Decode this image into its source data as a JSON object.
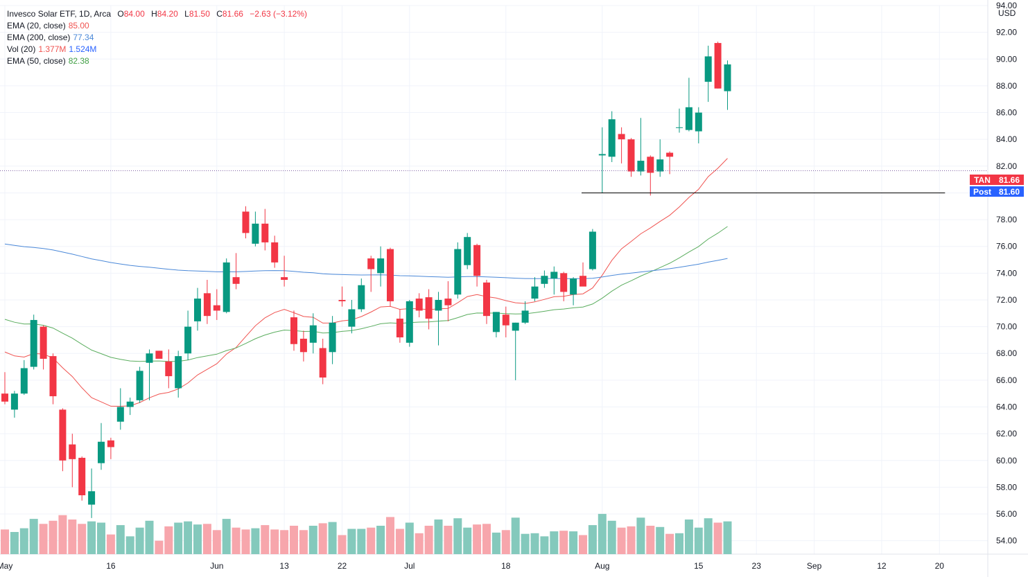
{
  "legend": {
    "title": "Invesco Solar ETF, 1D, Arca",
    "ohlc": {
      "o_label": "O",
      "o": "84.00",
      "h_label": "H",
      "h": "84.20",
      "l_label": "L",
      "l": "81.50",
      "c_label": "C",
      "c": "81.66",
      "chg": "−2.63 (−3.12%)"
    },
    "indicators": [
      {
        "label": "EMA (20, close)",
        "value": "85.00",
        "color": "#f05350"
      },
      {
        "label": "EMA (200, close)",
        "value": "77.34",
        "color": "#4a88d8"
      },
      {
        "label": "Vol (20)",
        "value": "1.377M",
        "value2": "1.524M",
        "color": "#f05350",
        "color2": "#2962ff"
      },
      {
        "label": "EMA (50, close)",
        "value": "82.38",
        "color": "#43a047"
      }
    ]
  },
  "axis": {
    "currency": "USD"
  },
  "price_tags": [
    {
      "label": "TAN",
      "value": "81.66",
      "color": "#f23645"
    },
    {
      "label": "Post",
      "value": "81.60",
      "color": "#2962ff"
    }
  ],
  "colors": {
    "up": "#089981",
    "down": "#f23645",
    "vol_up": "#84c9bc",
    "vol_down": "#f7a6ac",
    "ema20": "#f05350",
    "ema50": "#5aad5e",
    "ema200": "#4a88d8",
    "vol_ma": "#2962ff",
    "grid": "#f0f3fa",
    "support": "#000000"
  },
  "chart_data": {
    "type": "candlestick",
    "title": "Invesco Solar ETF, 1D, Arca",
    "ylim": [
      53,
      94
    ],
    "y_ticks": [
      54,
      56,
      58,
      60,
      62,
      64,
      66,
      68,
      70,
      72,
      74,
      76,
      78,
      80,
      82,
      84,
      86,
      88,
      90,
      92,
      94
    ],
    "x_tick_labels": [
      {
        "label": "May",
        "index": 0
      },
      {
        "label": "16",
        "index": 11
      },
      {
        "label": "Jun",
        "index": 22
      },
      {
        "label": "13",
        "index": 29
      },
      {
        "label": "22",
        "index": 35
      },
      {
        "label": "Jul",
        "index": 42
      },
      {
        "label": "18",
        "index": 52
      },
      {
        "label": "Aug",
        "index": 62
      },
      {
        "label": "15",
        "index": 72
      },
      {
        "label": "23",
        "index": 78
      },
      {
        "label": "Sep",
        "index": 84
      },
      {
        "label": "12",
        "index": 91
      },
      {
        "label": "20",
        "index": 97
      }
    ],
    "support_line": {
      "value": 80.0,
      "from_index": 60,
      "to_index": 97
    },
    "last_price_line": 81.66,
    "candles": [
      {
        "o": 65.0,
        "h": 66.6,
        "l": 64.2,
        "c": 64.4
      },
      {
        "o": 63.8,
        "h": 65.2,
        "l": 63.2,
        "c": 65.0
      },
      {
        "o": 65.0,
        "h": 67.5,
        "l": 64.9,
        "c": 66.9
      },
      {
        "o": 67.0,
        "h": 70.9,
        "l": 66.8,
        "c": 70.5
      },
      {
        "o": 70.0,
        "h": 70.1,
        "l": 66.8,
        "c": 67.6
      },
      {
        "o": 67.8,
        "h": 68.0,
        "l": 64.2,
        "c": 64.8
      },
      {
        "o": 63.8,
        "h": 63.9,
        "l": 59.2,
        "c": 60.0
      },
      {
        "o": 61.2,
        "h": 62.0,
        "l": 58.0,
        "c": 60.1
      },
      {
        "o": 60.2,
        "h": 60.3,
        "l": 57.0,
        "c": 57.4
      },
      {
        "o": 56.7,
        "h": 59.4,
        "l": 55.7,
        "c": 57.7
      },
      {
        "o": 59.8,
        "h": 62.8,
        "l": 59.3,
        "c": 61.4
      },
      {
        "o": 61.5,
        "h": 61.7,
        "l": 60.1,
        "c": 61.0
      },
      {
        "o": 62.9,
        "h": 65.4,
        "l": 62.3,
        "c": 64.0
      },
      {
        "o": 64.0,
        "h": 64.7,
        "l": 63.4,
        "c": 64.4
      },
      {
        "o": 64.5,
        "h": 67.0,
        "l": 64.3,
        "c": 66.7
      },
      {
        "o": 67.3,
        "h": 68.3,
        "l": 64.5,
        "c": 68.0
      },
      {
        "o": 68.2,
        "h": 68.2,
        "l": 67.7,
        "c": 67.6
      },
      {
        "o": 67.4,
        "h": 68.3,
        "l": 65.4,
        "c": 66.3
      },
      {
        "o": 65.4,
        "h": 68.2,
        "l": 64.7,
        "c": 67.8
      },
      {
        "o": 68.0,
        "h": 71.2,
        "l": 67.5,
        "c": 70.0
      },
      {
        "o": 70.4,
        "h": 72.9,
        "l": 69.7,
        "c": 72.1
      },
      {
        "o": 72.5,
        "h": 73.5,
        "l": 70.2,
        "c": 70.8
      },
      {
        "o": 71.6,
        "h": 72.8,
        "l": 70.5,
        "c": 71.2
      },
      {
        "o": 71.1,
        "h": 75.1,
        "l": 71.0,
        "c": 74.8
      },
      {
        "o": 73.7,
        "h": 75.5,
        "l": 72.8,
        "c": 73.2
      },
      {
        "o": 78.6,
        "h": 79.0,
        "l": 76.6,
        "c": 77.0
      },
      {
        "o": 76.2,
        "h": 78.6,
        "l": 76.0,
        "c": 77.7
      },
      {
        "o": 77.7,
        "h": 78.8,
        "l": 75.7,
        "c": 76.3
      },
      {
        "o": 76.3,
        "h": 76.8,
        "l": 74.4,
        "c": 74.8
      },
      {
        "o": 73.7,
        "h": 75.3,
        "l": 73.0,
        "c": 73.5
      },
      {
        "o": 70.7,
        "h": 71.2,
        "l": 68.2,
        "c": 68.7
      },
      {
        "o": 69.1,
        "h": 69.7,
        "l": 67.4,
        "c": 68.1
      },
      {
        "o": 68.8,
        "h": 71.0,
        "l": 68.0,
        "c": 70.1
      },
      {
        "o": 68.4,
        "h": 69.1,
        "l": 65.7,
        "c": 66.2
      },
      {
        "o": 68.1,
        "h": 70.8,
        "l": 67.2,
        "c": 70.3
      },
      {
        "o": 72.0,
        "h": 73.0,
        "l": 71.5,
        "c": 71.9
      },
      {
        "o": 70.0,
        "h": 72.0,
        "l": 69.5,
        "c": 71.3
      },
      {
        "o": 71.3,
        "h": 73.6,
        "l": 71.1,
        "c": 73.1
      },
      {
        "o": 75.1,
        "h": 75.3,
        "l": 72.6,
        "c": 74.3
      },
      {
        "o": 74.0,
        "h": 76.0,
        "l": 73.0,
        "c": 75.1
      },
      {
        "o": 75.8,
        "h": 75.9,
        "l": 71.5,
        "c": 71.9
      },
      {
        "o": 70.6,
        "h": 71.3,
        "l": 68.8,
        "c": 69.2
      },
      {
        "o": 68.8,
        "h": 72.0,
        "l": 68.5,
        "c": 71.9
      },
      {
        "o": 72.1,
        "h": 72.5,
        "l": 70.7,
        "c": 71.2
      },
      {
        "o": 72.2,
        "h": 72.8,
        "l": 69.8,
        "c": 70.6
      },
      {
        "o": 71.2,
        "h": 72.6,
        "l": 68.6,
        "c": 72.0
      },
      {
        "o": 72.1,
        "h": 73.4,
        "l": 70.4,
        "c": 71.6
      },
      {
        "o": 72.4,
        "h": 76.3,
        "l": 72.1,
        "c": 75.8
      },
      {
        "o": 74.6,
        "h": 77.0,
        "l": 74.3,
        "c": 76.7
      },
      {
        "o": 76.1,
        "h": 76.2,
        "l": 73.0,
        "c": 73.8
      },
      {
        "o": 73.3,
        "h": 73.5,
        "l": 70.2,
        "c": 70.8
      },
      {
        "o": 69.6,
        "h": 71.1,
        "l": 69.2,
        "c": 71.1
      },
      {
        "o": 70.9,
        "h": 71.5,
        "l": 69.2,
        "c": 70.1
      },
      {
        "o": 69.7,
        "h": 70.3,
        "l": 66.0,
        "c": 70.3
      },
      {
        "o": 70.3,
        "h": 71.9,
        "l": 70.2,
        "c": 71.2
      },
      {
        "o": 72.1,
        "h": 73.7,
        "l": 71.9,
        "c": 73.0
      },
      {
        "o": 73.2,
        "h": 74.2,
        "l": 72.9,
        "c": 73.8
      },
      {
        "o": 73.6,
        "h": 74.5,
        "l": 72.4,
        "c": 74.1
      },
      {
        "o": 74.0,
        "h": 74.1,
        "l": 71.9,
        "c": 72.6
      },
      {
        "o": 72.4,
        "h": 73.7,
        "l": 71.6,
        "c": 73.6
      },
      {
        "o": 73.8,
        "h": 74.8,
        "l": 73.3,
        "c": 73.0
      },
      {
        "o": 74.3,
        "h": 77.3,
        "l": 74.2,
        "c": 77.1
      },
      {
        "o": 82.8,
        "h": 84.9,
        "l": 80.0,
        "c": 82.9
      },
      {
        "o": 82.7,
        "h": 86.1,
        "l": 82.3,
        "c": 85.5
      },
      {
        "o": 84.4,
        "h": 84.9,
        "l": 82.2,
        "c": 84.0
      },
      {
        "o": 84.0,
        "h": 84.1,
        "l": 81.2,
        "c": 81.6
      },
      {
        "o": 81.6,
        "h": 85.6,
        "l": 81.3,
        "c": 82.4
      },
      {
        "o": 82.7,
        "h": 82.8,
        "l": 79.8,
        "c": 81.5
      },
      {
        "o": 81.6,
        "h": 84.0,
        "l": 81.2,
        "c": 82.5
      },
      {
        "o": 83.0,
        "h": 83.1,
        "l": 81.4,
        "c": 82.7
      },
      {
        "o": 84.9,
        "h": 86.3,
        "l": 84.5,
        "c": 84.9
      },
      {
        "o": 84.7,
        "h": 88.6,
        "l": 84.6,
        "c": 86.4
      },
      {
        "o": 84.6,
        "h": 86.4,
        "l": 83.7,
        "c": 86.0
      },
      {
        "o": 88.3,
        "h": 91.0,
        "l": 86.8,
        "c": 90.2
      },
      {
        "o": 91.2,
        "h": 91.3,
        "l": 87.8,
        "c": 87.8
      },
      {
        "o": 87.6,
        "h": 89.9,
        "l": 86.2,
        "c": 89.6
      }
    ],
    "volume_series_note": "Relative volume bars shown per candle; axis values not printed."
  }
}
